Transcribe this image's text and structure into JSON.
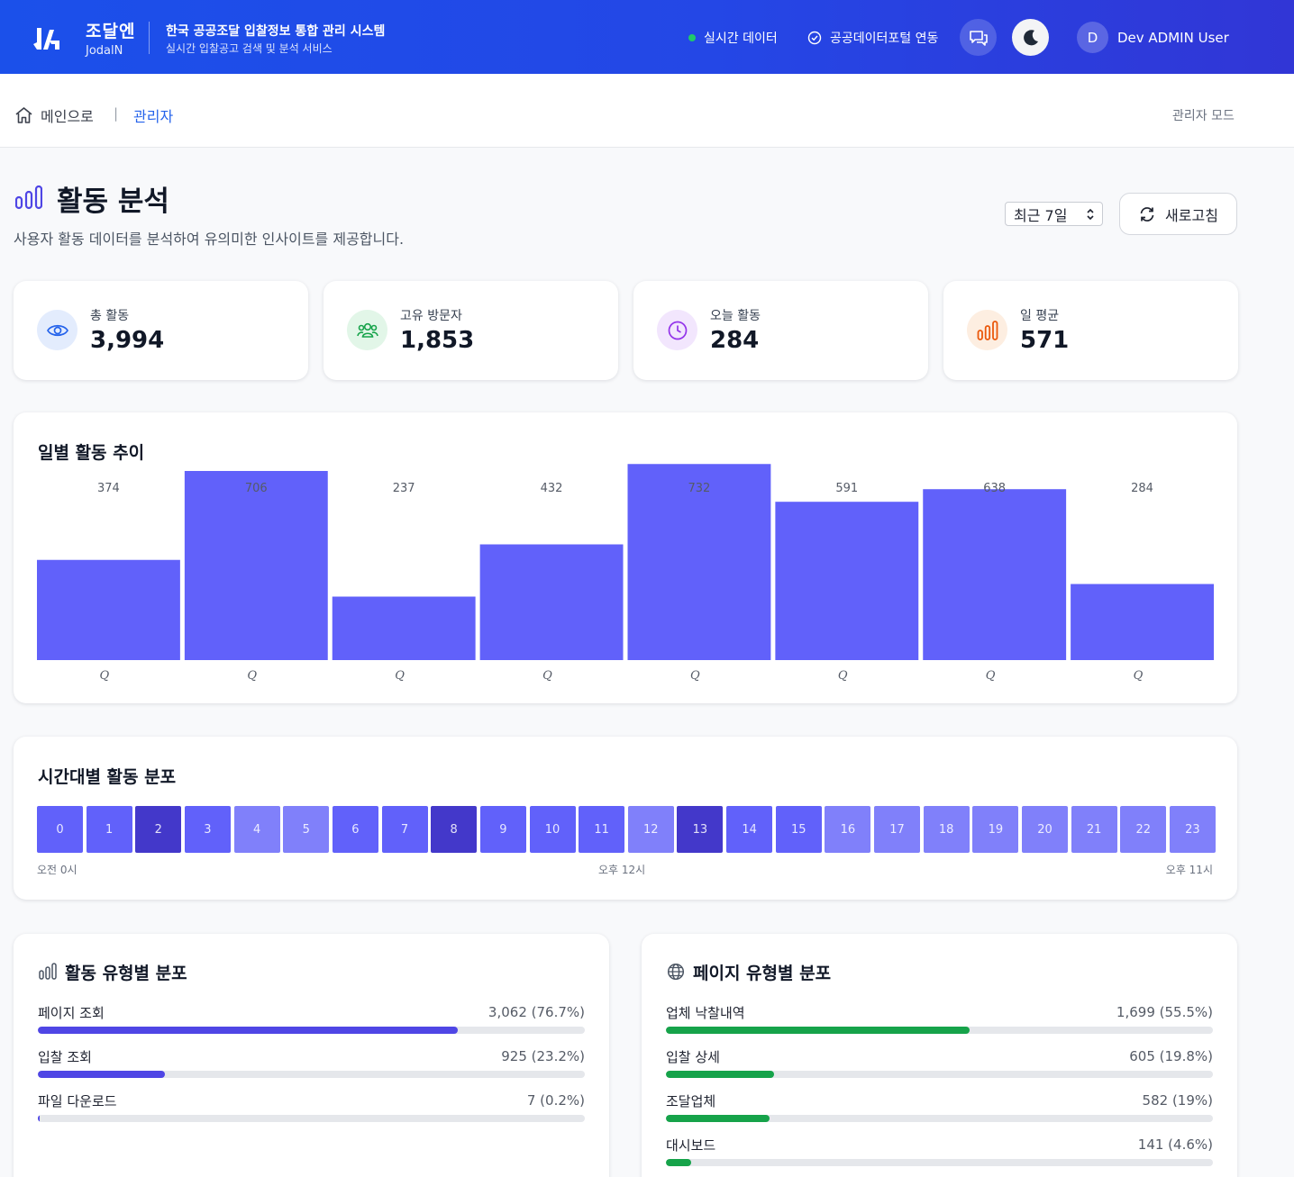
{
  "header": {
    "brand_name": "조달엔",
    "brand_sub": "JodalN",
    "system_title": "한국 공공조달 입찰정보 통합 관리 시스템",
    "system_sub": "실시간 입찰공고 검색 및 분석 서비스",
    "live_label": "실시간 데이터",
    "portal_label": "공공데이터포털 연동",
    "avatar_initial": "D",
    "user_name": "Dev ADMIN User"
  },
  "breadcrumb": {
    "home_label": "메인으로",
    "separator": "|",
    "current": "관리자",
    "mode_label": "관리자 모드"
  },
  "page": {
    "title": "활동 분석",
    "description": "사용자 활동 데이터를 분석하여 유의미한 인사이트를 제공합니다.",
    "range_selected": "최근 7일",
    "refresh_label": "새로고침"
  },
  "stats": [
    {
      "label": "총 활동",
      "value": "3,994",
      "icon": "eye-icon",
      "color": "#2563eb",
      "bg": "#e3ecfd"
    },
    {
      "label": "고유 방문자",
      "value": "1,853",
      "icon": "users-icon",
      "color": "#16a34a",
      "bg": "#e2f6e8"
    },
    {
      "label": "오늘 활동",
      "value": "284",
      "icon": "clock-icon",
      "color": "#9333ea",
      "bg": "#f2e6fd"
    },
    {
      "label": "일 평균",
      "value": "571",
      "icon": "bar-chart-icon",
      "color": "#ea580c",
      "bg": "#fdeee1"
    }
  ],
  "daily_section": {
    "title": "일별 활동 추이"
  },
  "chart_data": {
    "type": "bar",
    "categories": [
      "Q",
      "Q",
      "Q",
      "Q",
      "Q",
      "Q",
      "Q",
      "Q"
    ],
    "values": [
      374,
      706,
      237,
      432,
      732,
      591,
      638,
      284
    ],
    "title": "일별 활동 추이",
    "ylim": [
      0,
      790
    ],
    "bar_color": "#6161fa"
  },
  "hourly_section": {
    "title": "시간대별 활동 분포",
    "hours": [
      "0",
      "1",
      "2",
      "3",
      "4",
      "5",
      "6",
      "7",
      "8",
      "9",
      "10",
      "11",
      "12",
      "13",
      "14",
      "15",
      "16",
      "17",
      "18",
      "19",
      "20",
      "21",
      "22",
      "23"
    ],
    "intensity": [
      0.75,
      0.75,
      1.0,
      0.75,
      0.45,
      0.45,
      0.7,
      0.7,
      1.0,
      0.7,
      0.7,
      0.7,
      0.35,
      1.0,
      0.7,
      0.7,
      0.4,
      0.4,
      0.4,
      0.45,
      0.45,
      0.45,
      0.45,
      0.45
    ],
    "label_start": "오전 0시",
    "label_mid": "오후 12시",
    "label_end": "오후 11시"
  },
  "activity_types": {
    "title": "활동 유형별 분포",
    "color": "#4f46e5",
    "items": [
      {
        "label": "페이지 조회",
        "value": "3,062 (76.7%)",
        "pct": 76.7
      },
      {
        "label": "입찰 조회",
        "value": "925 (23.2%)",
        "pct": 23.2
      },
      {
        "label": "파일 다운로드",
        "value": "7 (0.2%)",
        "pct": 0.2
      }
    ]
  },
  "page_types": {
    "title": "페이지 유형별 분포",
    "color": "#16a34a",
    "items": [
      {
        "label": "업체 낙찰내역",
        "value": "1,699 (55.5%)",
        "pct": 55.5
      },
      {
        "label": "입찰 상세",
        "value": "605 (19.8%)",
        "pct": 19.8
      },
      {
        "label": "조달업체",
        "value": "582 (19%)",
        "pct": 19.0
      },
      {
        "label": "대시보드",
        "value": "141 (4.6%)",
        "pct": 4.6
      }
    ]
  }
}
